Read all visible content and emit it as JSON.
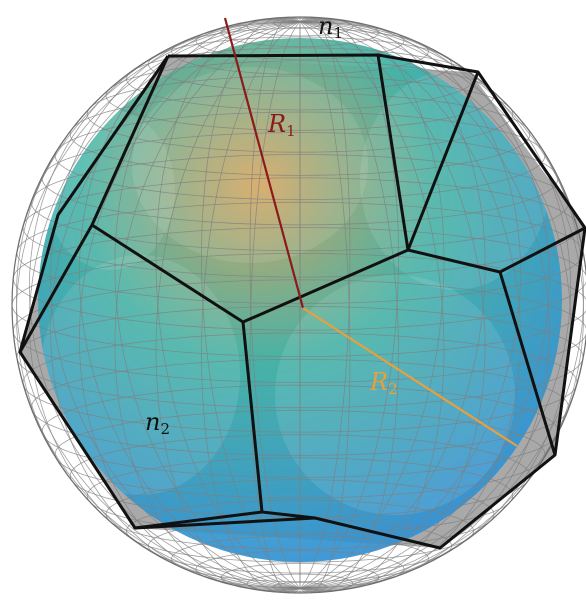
{
  "labels": {
    "n1": {
      "base": "n",
      "sub": "1"
    },
    "R1": {
      "base": "R",
      "sub": "1"
    },
    "R2": {
      "base": "R",
      "sub": "2"
    },
    "n2": {
      "base": "n",
      "sub": "2"
    }
  },
  "colors": {
    "r1_line": "#8b1a1a",
    "r2_line": "#e8a03c",
    "r1_text": "#8b1a1a",
    "r2_text": "#e8a03c",
    "label_text": "#111111",
    "wireframe": "#7f7f7f",
    "polyhedron_edge": "#111111",
    "polyhedron_face": "#9a9a9a",
    "sphere_top": "#d8a55a",
    "sphere_mid": "#3fb3a6",
    "sphere_bottom": "#2f8fd8"
  }
}
